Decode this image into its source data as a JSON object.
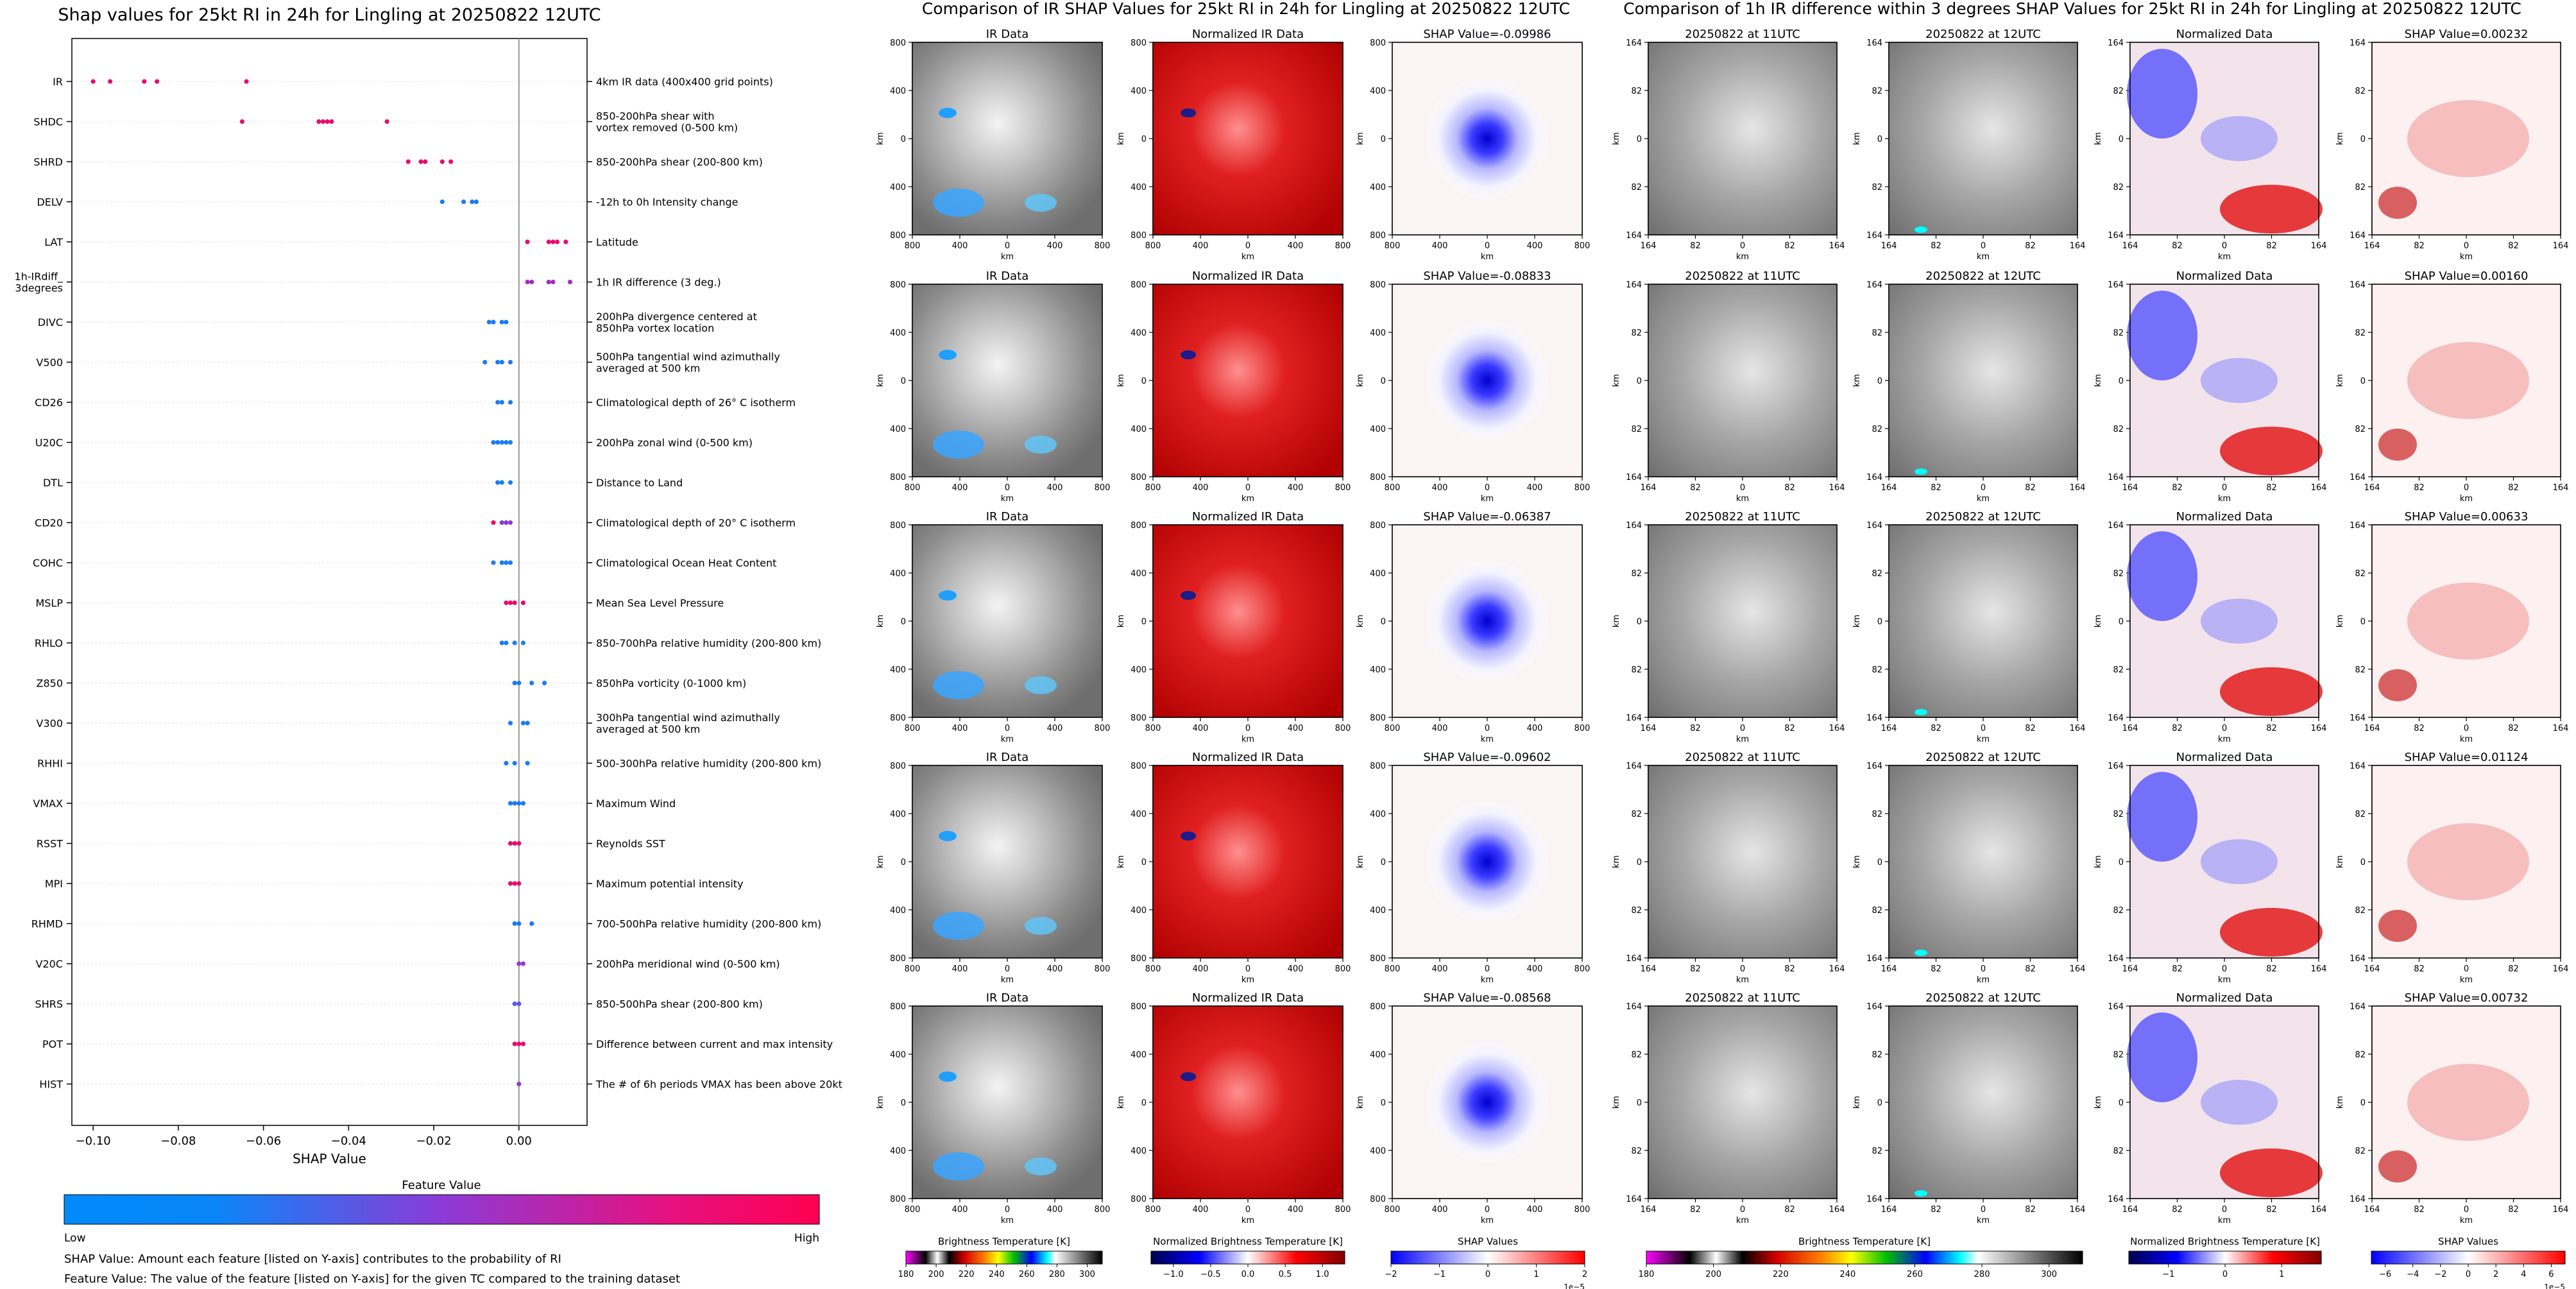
{
  "chart_data": [
    {
      "type": "scatter",
      "title": "Shap values for 25kt RI in 24h for Lingling at 20250822 12UTC",
      "xlabel": "SHAP Value",
      "xlim": [
        -0.105,
        0.016
      ],
      "xticks": [
        -0.1,
        -0.08,
        -0.06,
        -0.04,
        -0.02,
        0.0
      ],
      "xtick_labels": [
        "−0.10",
        "−0.08",
        "−0.06",
        "−0.04",
        "−0.02",
        "0.00"
      ],
      "colorbar": {
        "title": "Feature Value",
        "low": "Low",
        "high": "High",
        "colors": [
          "#008bfb",
          "#ff0052"
        ]
      },
      "notes": [
        "SHAP Value: Amount each feature [listed on Y-axis] contributes to the probability of RI",
        "Feature Value: The value of the feature [listed on Y-axis] for the given TC compared to the training dataset"
      ],
      "features": [
        {
          "name": "IR",
          "desc": "4km IR data (400x400 grid points)",
          "points": [
            [
              -0.1,
              0.9
            ],
            [
              -0.096,
              0.9
            ],
            [
              -0.088,
              0.9
            ],
            [
              -0.085,
              0.9
            ],
            [
              -0.064,
              0.9
            ]
          ]
        },
        {
          "name": "SHDC",
          "desc": "850-200hPa shear with\nvortex removed (0-500 km)",
          "points": [
            [
              -0.065,
              0.9
            ],
            [
              -0.047,
              0.9
            ],
            [
              -0.046,
              0.9
            ],
            [
              -0.045,
              0.9
            ],
            [
              -0.044,
              0.9
            ],
            [
              -0.031,
              0.9
            ]
          ]
        },
        {
          "name": "SHRD",
          "desc": "850-200hPa shear (200-800 km)",
          "points": [
            [
              -0.026,
              0.9
            ],
            [
              -0.023,
              0.9
            ],
            [
              -0.022,
              0.9
            ],
            [
              -0.018,
              0.9
            ],
            [
              -0.016,
              0.9
            ]
          ]
        },
        {
          "name": "DELV",
          "desc": "-12h to 0h Intensity change",
          "points": [
            [
              -0.018,
              0.1
            ],
            [
              -0.013,
              0.1
            ],
            [
              -0.011,
              0.1
            ],
            [
              -0.01,
              0.1
            ]
          ]
        },
        {
          "name": "LAT",
          "desc": "Latitude",
          "points": [
            [
              0.002,
              0.9
            ],
            [
              0.007,
              0.9
            ],
            [
              0.008,
              0.9
            ],
            [
              0.009,
              0.9
            ],
            [
              0.011,
              0.9
            ]
          ]
        },
        {
          "name": "1h-IRdiff_\n3degrees",
          "desc": "1h IR difference (3 deg.)",
          "points": [
            [
              0.002,
              0.6
            ],
            [
              0.003,
              0.6
            ],
            [
              0.007,
              0.6
            ],
            [
              0.008,
              0.6
            ],
            [
              0.012,
              0.6
            ]
          ]
        },
        {
          "name": "DIVC",
          "desc": "200hPa divergence centered at\n850hPa vortex location",
          "points": [
            [
              -0.007,
              0.1
            ],
            [
              -0.006,
              0.1
            ],
            [
              -0.004,
              0.1
            ],
            [
              -0.003,
              0.1
            ]
          ]
        },
        {
          "name": "V500",
          "desc": "500hPa tangential wind azimuthally\naveraged at 500 km",
          "points": [
            [
              -0.008,
              0.1
            ],
            [
              -0.005,
              0.1
            ],
            [
              -0.004,
              0.1
            ],
            [
              -0.002,
              0.1
            ]
          ]
        },
        {
          "name": "CD26",
          "desc": "Climatological depth of 26° C isotherm",
          "points": [
            [
              -0.005,
              0.1
            ],
            [
              -0.004,
              0.1
            ],
            [
              -0.002,
              0.1
            ]
          ]
        },
        {
          "name": "U20C",
          "desc": "200hPa zonal wind (0-500 km)",
          "points": [
            [
              -0.006,
              0.1
            ],
            [
              -0.005,
              0.1
            ],
            [
              -0.004,
              0.1
            ],
            [
              -0.003,
              0.1
            ],
            [
              -0.002,
              0.1
            ]
          ]
        },
        {
          "name": "DTL",
          "desc": "Distance to Land",
          "points": [
            [
              -0.005,
              0.1
            ],
            [
              -0.004,
              0.1
            ],
            [
              -0.002,
              0.1
            ]
          ]
        },
        {
          "name": "CD20",
          "desc": "Climatological depth of 20° C isotherm",
          "points": [
            [
              -0.006,
              0.9
            ],
            [
              -0.004,
              0.5
            ],
            [
              -0.003,
              0.5
            ],
            [
              -0.002,
              0.5
            ]
          ]
        },
        {
          "name": "COHC",
          "desc": "Climatological Ocean Heat Content",
          "points": [
            [
              -0.006,
              0.1
            ],
            [
              -0.004,
              0.1
            ],
            [
              -0.003,
              0.1
            ],
            [
              -0.002,
              0.1
            ]
          ]
        },
        {
          "name": "MSLP",
          "desc": "Mean Sea Level Pressure",
          "points": [
            [
              -0.003,
              0.9
            ],
            [
              -0.002,
              0.9
            ],
            [
              -0.001,
              0.9
            ],
            [
              0.001,
              0.9
            ]
          ]
        },
        {
          "name": "RHLO",
          "desc": "850-700hPa relative humidity (200-800 km)",
          "points": [
            [
              -0.004,
              0.1
            ],
            [
              -0.003,
              0.1
            ],
            [
              -0.001,
              0.1
            ],
            [
              0.001,
              0.1
            ]
          ]
        },
        {
          "name": "Z850",
          "desc": "850hPa vorticity (0-1000 km)",
          "points": [
            [
              -0.001,
              0.1
            ],
            [
              0.0,
              0.1
            ],
            [
              0.003,
              0.1
            ],
            [
              0.006,
              0.1
            ]
          ]
        },
        {
          "name": "V300",
          "desc": "300hPa tangential wind azimuthally\naveraged at 500 km",
          "points": [
            [
              -0.002,
              0.1
            ],
            [
              0.001,
              0.1
            ],
            [
              0.002,
              0.1
            ]
          ]
        },
        {
          "name": "RHHI",
          "desc": "500-300hPa relative humidity (200-800 km)",
          "points": [
            [
              -0.003,
              0.1
            ],
            [
              -0.001,
              0.1
            ],
            [
              0.002,
              0.1
            ]
          ]
        },
        {
          "name": "VMAX",
          "desc": "Maximum Wind",
          "points": [
            [
              -0.002,
              0.1
            ],
            [
              -0.001,
              0.1
            ],
            [
              0.0,
              0.1
            ],
            [
              0.001,
              0.1
            ]
          ]
        },
        {
          "name": "RSST",
          "desc": "Reynolds SST",
          "points": [
            [
              -0.002,
              0.9
            ],
            [
              -0.001,
              0.9
            ],
            [
              0.0,
              0.9
            ]
          ]
        },
        {
          "name": "MPI",
          "desc": "Maximum potential intensity",
          "points": [
            [
              -0.002,
              0.9
            ],
            [
              -0.001,
              0.9
            ],
            [
              0.0,
              0.9
            ]
          ]
        },
        {
          "name": "RHMD",
          "desc": "700-500hPa relative humidity (200-800 km)",
          "points": [
            [
              -0.001,
              0.1
            ],
            [
              0.0,
              0.1
            ],
            [
              0.003,
              0.1
            ]
          ]
        },
        {
          "name": "V20C",
          "desc": "200hPa meridional wind (0-500 km)",
          "points": [
            [
              0.0,
              0.5
            ],
            [
              0.001,
              0.5
            ]
          ]
        },
        {
          "name": "SHRS",
          "desc": "850-500hPa shear (200-800 km)",
          "points": [
            [
              -0.001,
              0.3
            ],
            [
              0.0,
              0.3
            ]
          ]
        },
        {
          "name": "POT",
          "desc": "Difference between current and max intensity",
          "points": [
            [
              -0.001,
              0.9
            ],
            [
              0.0,
              0.9
            ],
            [
              0.001,
              0.9
            ]
          ]
        },
        {
          "name": "HIST",
          "desc": "The # of 6h periods VMAX has been above 20kt",
          "points": [
            [
              0.0,
              0.5
            ]
          ]
        }
      ]
    },
    {
      "type": "heatmap",
      "title": "Comparison of IR SHAP Values for 25kt RI in 24h for Lingling at 20250822 12UTC",
      "column_titles": [
        "IR Data",
        "Normalized IR Data"
      ],
      "shap_titles": [
        "SHAP Value=-0.09986",
        "SHAP Value=-0.08833",
        "SHAP Value=-0.06387",
        "SHAP Value=-0.09602",
        "SHAP Value=-0.08568"
      ],
      "xlabel": "km",
      "ylabel": "km",
      "ticks": [
        "800",
        "400",
        "0",
        "400",
        "800"
      ],
      "colorbars": [
        {
          "label": "Brightness Temperature [K]",
          "ticks": [
            "180",
            "200",
            "220",
            "240",
            "260",
            "280",
            "300"
          ],
          "range": [
            180,
            310
          ]
        },
        {
          "label": "Normalized Brightness Temperature [K]",
          "ticks": [
            "−1.0",
            "−0.5",
            "0.0",
            "0.5",
            "1.0"
          ],
          "range": [
            -1.3,
            1.3
          ]
        },
        {
          "label": "SHAP Values",
          "ticks": [
            "−2",
            "−1",
            "0",
            "1",
            "2"
          ],
          "range": [
            -2,
            2
          ],
          "exponent": "1e−5"
        }
      ]
    },
    {
      "type": "heatmap",
      "title": "Comparison of 1h IR difference within 3 degrees SHAP Values for 25kt RI in 24h for Lingling at 20250822 12UTC",
      "column_titles": [
        "20250822 at 11UTC",
        "20250822 at 12UTC",
        "Normalized Data"
      ],
      "shap_titles": [
        "SHAP Value=0.00232",
        "SHAP Value=0.00160",
        "SHAP Value=0.00633",
        "SHAP Value=0.01124",
        "SHAP Value=0.00732"
      ],
      "xlabel": "km",
      "ylabel": "km",
      "ticks": [
        "164",
        "82",
        "0",
        "82",
        "164"
      ],
      "colorbars": [
        {
          "label": "Brightness Temperature [K]",
          "ticks": [
            "180",
            "200",
            "220",
            "240",
            "260",
            "280",
            "300"
          ],
          "range": [
            180,
            310
          ]
        },
        {
          "label": "Normalized Brightness Temperature [K]",
          "ticks": [
            "−1",
            "0",
            "1"
          ],
          "range": [
            -1.7,
            1.7
          ]
        },
        {
          "label": "SHAP Values",
          "ticks": [
            "−6",
            "−4",
            "−2",
            "0",
            "2",
            "4",
            "6"
          ],
          "range": [
            -7,
            7
          ],
          "exponent": "1e−5"
        }
      ]
    }
  ]
}
